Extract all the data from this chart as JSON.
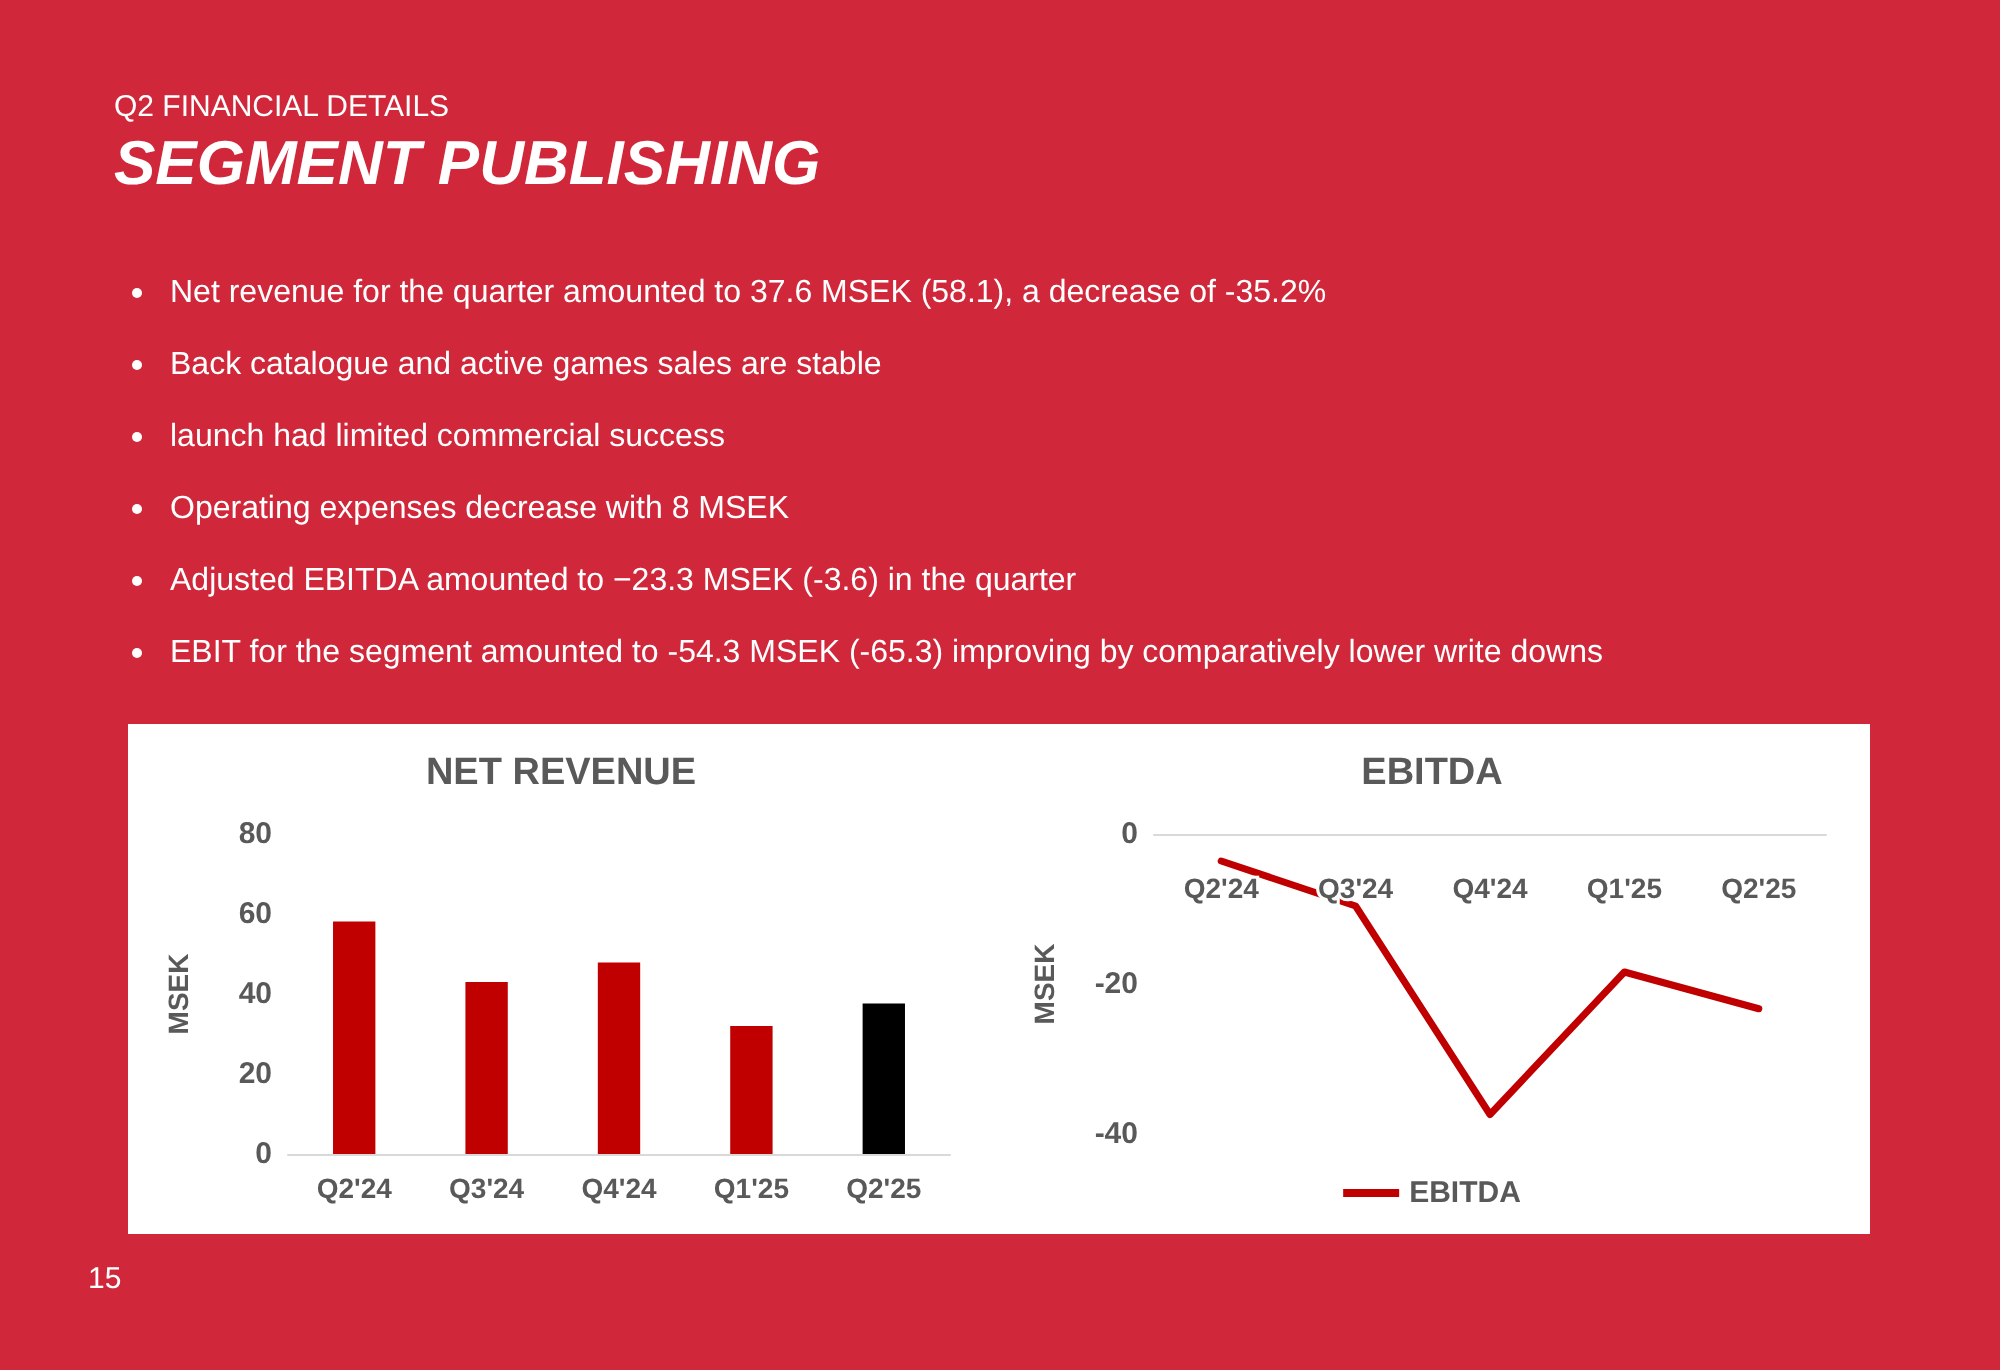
{
  "chart_data": [
    {
      "type": "other",
      "subtitle": "Q2 FINANCIAL DETAILS",
      "title": "SEGMENT PUBLISHING",
      "annotations": [
        "Net revenue for the quarter amounted to 37.6 MSEK (58.1), a decrease of -35.2%",
        "Back catalogue and active games sales are stable",
        "launch had limited commercial success",
        "Operating expenses decrease with 8 MSEK",
        "Adjusted EBITDA amounted to −23.3 MSEK (-3.6) in the quarter",
        "EBIT for the segment amounted to -54.3 MSEK (-65.3) improving by comparatively lower write downs",
        "15"
      ]
    },
    {
      "type": "bar",
      "title": "NET REVENUE",
      "ylabel": "MSEK",
      "categories": [
        "Q2'24",
        "Q3'24",
        "Q4'24",
        "Q1'25",
        "Q2'25"
      ],
      "values": [
        58.1,
        43,
        47.9,
        32,
        37.6
      ],
      "colors": [
        "#c00000",
        "#c00000",
        "#c00000",
        "#c00000",
        "#000000"
      ],
      "ylim": [
        0,
        80
      ],
      "yticks": [
        0,
        20,
        40,
        60,
        80
      ],
      "grid": false,
      "legend": false
    },
    {
      "type": "line",
      "title": "EBITDA",
      "ylabel": "MSEK",
      "categories": [
        "Q2'24",
        "Q3'24",
        "Q4'24",
        "Q1'25",
        "Q2'25"
      ],
      "series": [
        {
          "name": "EBITDA",
          "color": "#c00000",
          "values": [
            -3.6,
            -9.6,
            -37.4,
            -18.4,
            -23.3
          ]
        }
      ],
      "ylim": [
        -40,
        0
      ],
      "yticks": [
        -40,
        -20,
        0
      ],
      "grid": false,
      "legend": "bottom",
      "marker": "none",
      "line_style": "solid"
    }
  ]
}
